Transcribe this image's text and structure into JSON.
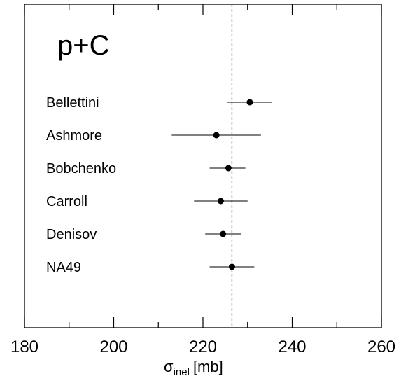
{
  "chart_data": {
    "type": "scatter",
    "title": "p+C",
    "xlabel": {
      "symbol": "σ",
      "subscript": "inel",
      "unit": "[mb]"
    },
    "ylabel": "",
    "xlim": [
      180,
      260
    ],
    "xticks": [
      180,
      200,
      220,
      240,
      260
    ],
    "tick_labels": [
      "180",
      "200",
      "220",
      "240",
      "260"
    ],
    "grid": false,
    "reference_line": {
      "x": 226.5,
      "style": "dashed"
    },
    "points": [
      {
        "label": "Bellettini",
        "value": 230.5,
        "err_low": 225.5,
        "err_high": 235.5
      },
      {
        "label": "Ashmore",
        "value": 223.0,
        "err_low": 213.0,
        "err_high": 233.0
      },
      {
        "label": "Bobchenko",
        "value": 225.7,
        "err_low": 221.5,
        "err_high": 229.5
      },
      {
        "label": "Carroll",
        "value": 224.0,
        "err_low": 218.0,
        "err_high": 230.0
      },
      {
        "label": "Denisov",
        "value": 224.5,
        "err_low": 220.5,
        "err_high": 228.5
      },
      {
        "label": "NA49",
        "value": 226.5,
        "err_low": 221.5,
        "err_high": 231.5
      }
    ]
  }
}
